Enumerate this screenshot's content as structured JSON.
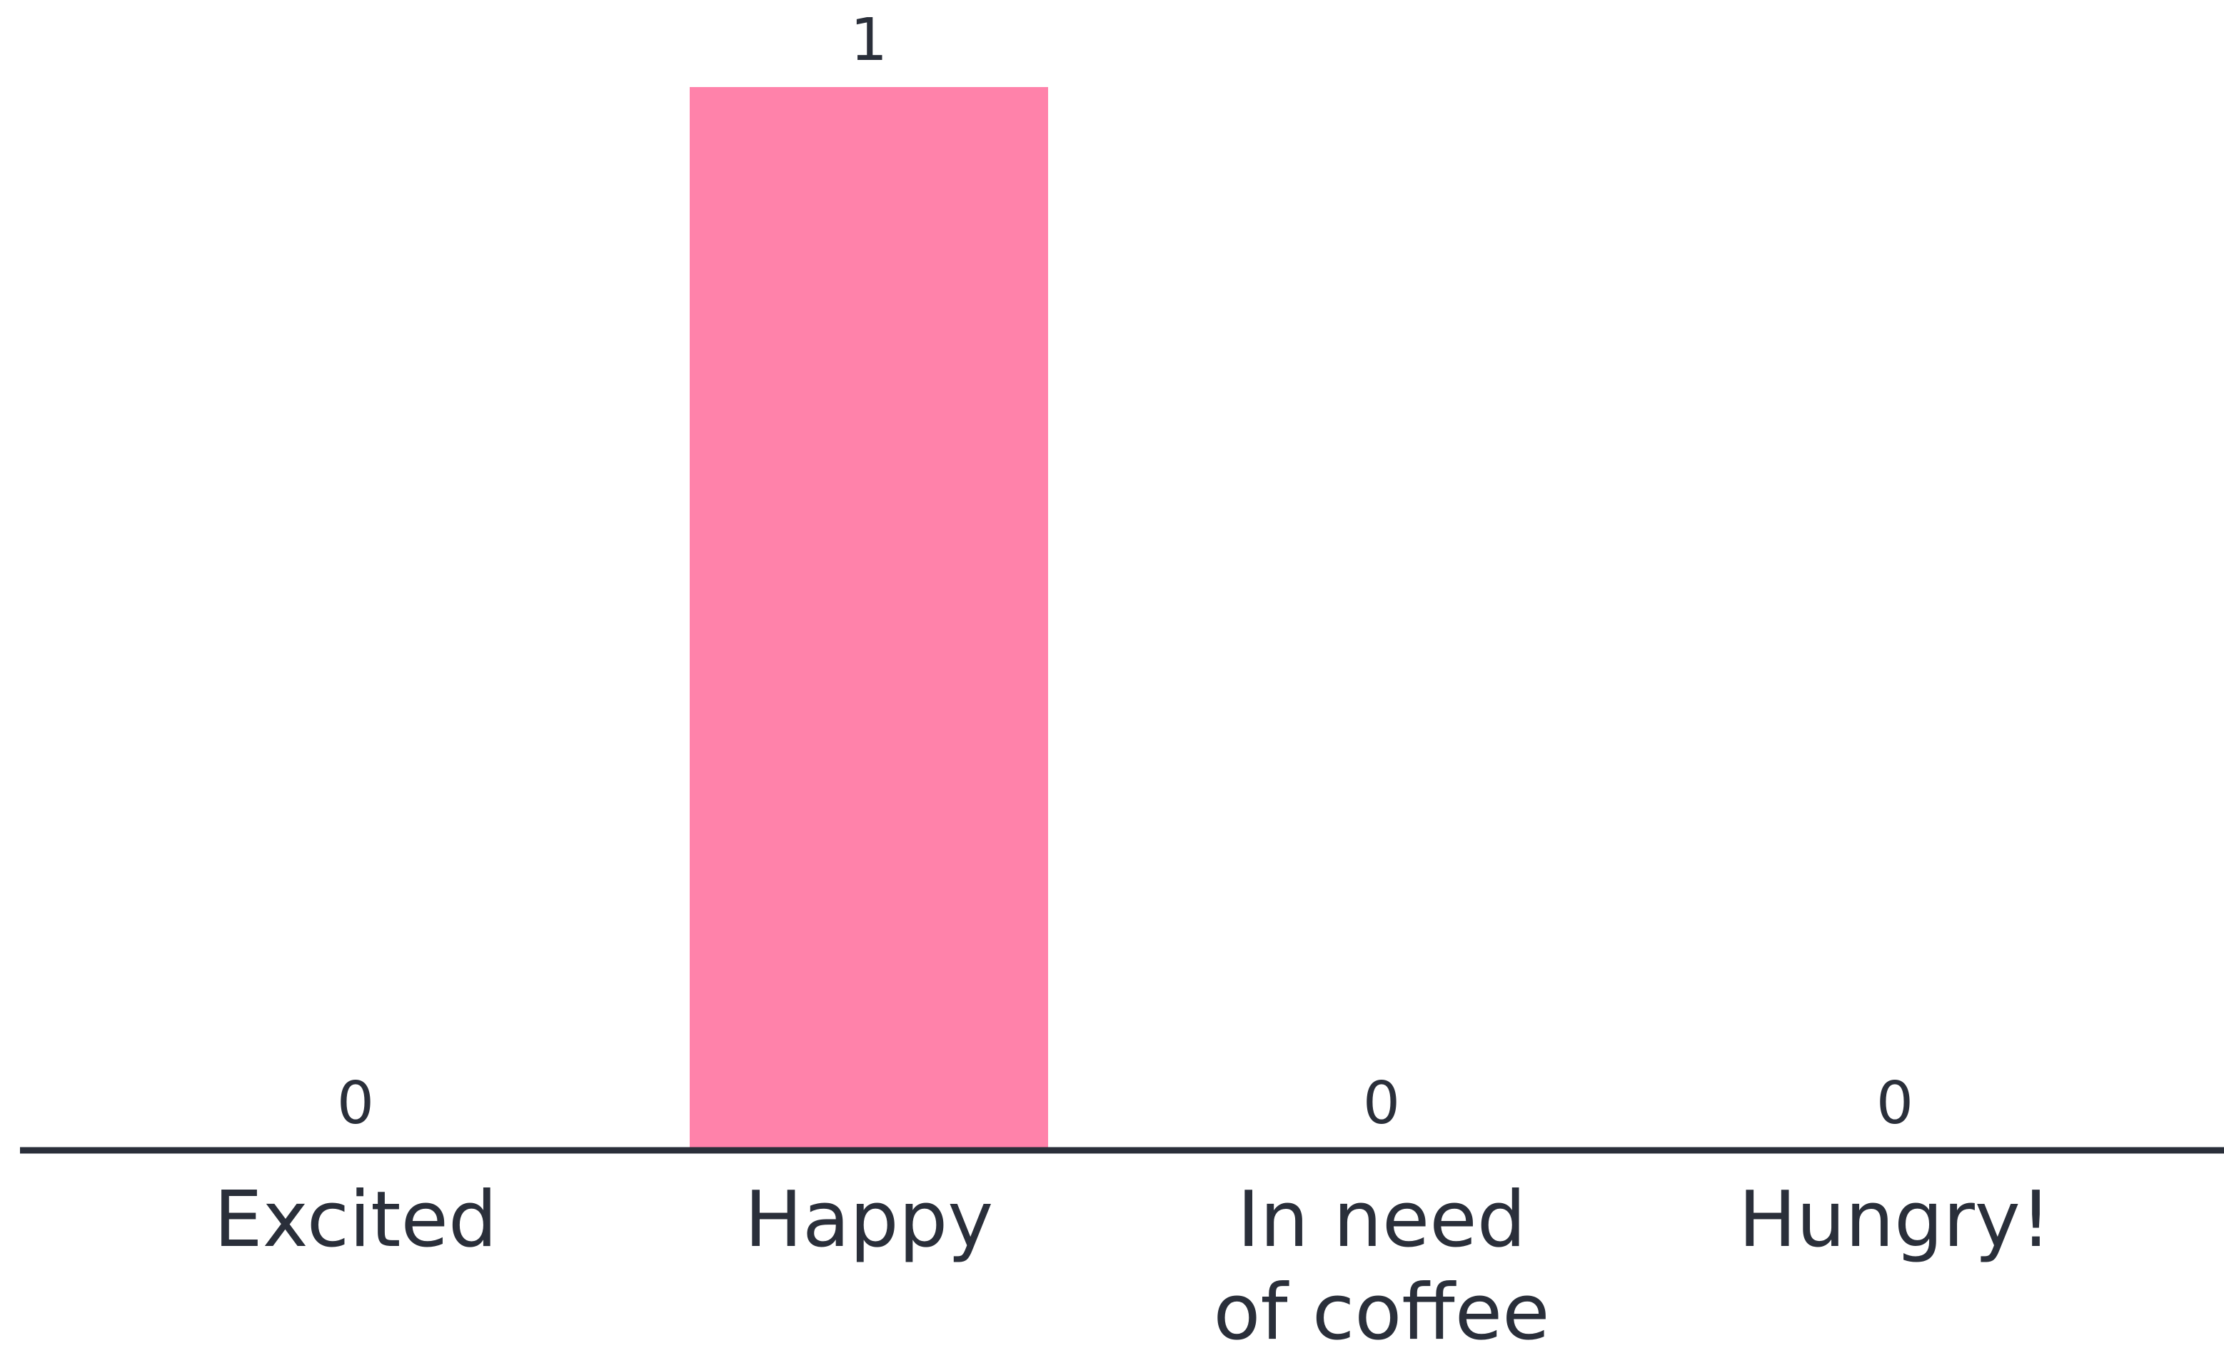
{
  "chart_data": {
    "type": "bar",
    "categories": [
      [
        "Excited"
      ],
      [
        "Happy"
      ],
      [
        "In need",
        "of coffee"
      ],
      [
        "Hungry!"
      ]
    ],
    "values": [
      0,
      1,
      0,
      0
    ],
    "data_labels": [
      "0",
      "1",
      "0",
      "0"
    ],
    "title": "",
    "xlabel": "",
    "ylabel": "",
    "ylim": [
      0,
      1
    ],
    "grid": false,
    "legend": "none",
    "colors": {
      "bar": "#ff82aa",
      "text": "#2a2f3a",
      "axis": "#2a2f3a",
      "background": "#ffffff"
    }
  }
}
